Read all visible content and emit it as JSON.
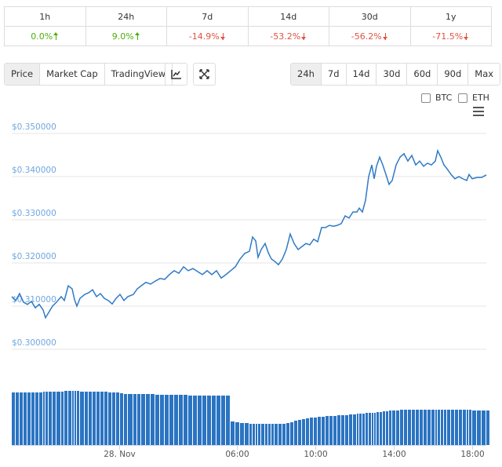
{
  "changes": {
    "headers": [
      "1h",
      "24h",
      "7d",
      "14d",
      "30d",
      "1y"
    ],
    "values": [
      "0.0%",
      "9.0%",
      "-14.9%",
      "-53.2%",
      "-56.2%",
      "-71.5%"
    ]
  },
  "tabs": [
    "Price",
    "Market Cap",
    "TradingView"
  ],
  "ranges": [
    "24h",
    "7d",
    "14d",
    "30d",
    "60d",
    "90d",
    "Max"
  ],
  "currencies": [
    "BTC",
    "ETH"
  ],
  "chart_data": {
    "type": "line",
    "x": [
      -5.5,
      -5.3,
      -5.1,
      -4.9,
      -4.7,
      -4.5,
      -4.3,
      -4.1,
      -3.9,
      -3.78,
      -3.62,
      -3.42,
      -3.22,
      -2.98,
      -2.82,
      -2.62,
      -2.42,
      -2.3,
      -2.18,
      -2.02,
      -1.78,
      -1.58,
      -1.38,
      -1.18,
      -0.98,
      -0.78,
      -0.58,
      -0.38,
      -0.18,
      0.02,
      0.22,
      0.42,
      0.7,
      0.9,
      1.1,
      1.34,
      1.58,
      1.82,
      2.06,
      2.3,
      2.54,
      2.78,
      3.02,
      3.26,
      3.5,
      3.74,
      3.98,
      4.22,
      4.46,
      4.7,
      4.94,
      5.18,
      5.42,
      5.66,
      5.9,
      6.14,
      6.38,
      6.62,
      6.78,
      6.94,
      7.06,
      7.22,
      7.42,
      7.58,
      7.74,
      7.9,
      8.1,
      8.3,
      8.5,
      8.7,
      8.9,
      9.1,
      9.3,
      9.5,
      9.7,
      9.9,
      10.1,
      10.3,
      10.5,
      10.7,
      10.9,
      11.1,
      11.3,
      11.5,
      11.7,
      11.9,
      12.1,
      12.22,
      12.38,
      12.54,
      12.7,
      12.86,
      12.98,
      13.1,
      13.26,
      13.42,
      13.58,
      13.74,
      13.9,
      14.1,
      14.3,
      14.5,
      14.7,
      14.9,
      15.1,
      15.3,
      15.5,
      15.7,
      15.9,
      16.1,
      16.22,
      16.38,
      16.54,
      16.7,
      16.9,
      17.1,
      17.3,
      17.5,
      17.7,
      17.82,
      17.98,
      18.22,
      18.46,
      18.7
    ],
    "series": [
      {
        "color": "#2f7ac6",
        "values": [
          0.3122,
          0.3113,
          0.3129,
          0.3109,
          0.3104,
          0.3111,
          0.3096,
          0.3104,
          0.3091,
          0.3073,
          0.3085,
          0.31,
          0.3109,
          0.3122,
          0.3113,
          0.3147,
          0.314,
          0.3115,
          0.31,
          0.3118,
          0.3127,
          0.3131,
          0.3138,
          0.3122,
          0.3129,
          0.3118,
          0.3113,
          0.3105,
          0.3118,
          0.3127,
          0.3113,
          0.3122,
          0.3127,
          0.314,
          0.3147,
          0.3155,
          0.3151,
          0.3158,
          0.3164,
          0.3162,
          0.3173,
          0.3182,
          0.3176,
          0.3191,
          0.3182,
          0.3187,
          0.318,
          0.3173,
          0.3182,
          0.3173,
          0.3182,
          0.3165,
          0.3173,
          0.3182,
          0.3191,
          0.3209,
          0.3222,
          0.3227,
          0.326,
          0.3251,
          0.3213,
          0.3231,
          0.3245,
          0.3224,
          0.3209,
          0.3204,
          0.3196,
          0.3209,
          0.3231,
          0.3267,
          0.3245,
          0.3231,
          0.3238,
          0.3245,
          0.3242,
          0.3255,
          0.3249,
          0.3282,
          0.3282,
          0.3287,
          0.3285,
          0.3287,
          0.3291,
          0.3309,
          0.3304,
          0.3318,
          0.3318,
          0.3327,
          0.3318,
          0.3345,
          0.34,
          0.3427,
          0.3395,
          0.3424,
          0.3445,
          0.3427,
          0.3405,
          0.3382,
          0.3391,
          0.3427,
          0.3445,
          0.3453,
          0.3436,
          0.3449,
          0.3427,
          0.3436,
          0.3424,
          0.3431,
          0.3427,
          0.3436,
          0.346,
          0.3445,
          0.3427,
          0.3418,
          0.3405,
          0.3395,
          0.34,
          0.3395,
          0.3391,
          0.3405,
          0.3395,
          0.3398,
          0.3398,
          0.3404
        ]
      },
      {
        "type": "bar",
        "axis": "y2",
        "color": "#2b74c2",
        "values": [
          67,
          67,
          67,
          67,
          67,
          67,
          67,
          67,
          68,
          68,
          68,
          68,
          68,
          68,
          69,
          69,
          69,
          69,
          69,
          68,
          68,
          68,
          68,
          68,
          68,
          68,
          67,
          67,
          67,
          66,
          65,
          65,
          65,
          65,
          65,
          65,
          65,
          64,
          64,
          64,
          64,
          64,
          64,
          64,
          63,
          63,
          63,
          63,
          63,
          63,
          63,
          63,
          63,
          30,
          29,
          28,
          28,
          27,
          27,
          27,
          27,
          27,
          27,
          27,
          27,
          27,
          27,
          27,
          28,
          29,
          31,
          32,
          33,
          34,
          35,
          35,
          36,
          36,
          37,
          37,
          37,
          38,
          38,
          38,
          39,
          39,
          40,
          40,
          40,
          41,
          41,
          41,
          41,
          42,
          42,
          43,
          43,
          44,
          44,
          44,
          45,
          45,
          45,
          45,
          45,
          45,
          45,
          45,
          45,
          45,
          45,
          45,
          45,
          45,
          45,
          45,
          45,
          45,
          45,
          45,
          44,
          44,
          44,
          44
        ]
      }
    ],
    "xlim": [
      -5.5,
      18.7
    ],
    "xticks": [
      {
        "value": 0,
        "label": "28. Nov"
      },
      {
        "value": 6,
        "label": "06:00"
      },
      {
        "value": 10,
        "label": "10:00"
      },
      {
        "value": 14,
        "label": "14:00"
      },
      {
        "value": 18,
        "label": "18:00"
      }
    ],
    "ylim": [
      0.296,
      0.352
    ],
    "yticks": [
      {
        "value": 0.35,
        "label": "$0.350000"
      },
      {
        "value": 0.34,
        "label": "$0.340000"
      },
      {
        "value": 0.33,
        "label": "$0.330000"
      },
      {
        "value": 0.32,
        "label": "$0.320000"
      },
      {
        "value": 0.31,
        "label": "$0.310000"
      },
      {
        "value": 0.3,
        "label": "$0.300000"
      }
    ],
    "y2lim": [
      0,
      100
    ],
    "grid": true
  }
}
